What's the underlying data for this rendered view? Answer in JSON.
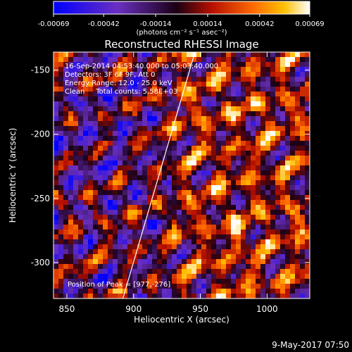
{
  "colorbar": {
    "ticks": [
      "-0.00069",
      "-0.00042",
      "-0.00014",
      "0.00014",
      "0.00042",
      "0.00069"
    ],
    "tick_values": [
      -0.00069,
      -0.00042,
      -0.00014,
      0.00014,
      0.00042,
      0.00069
    ],
    "range": [
      -0.00069,
      0.00069
    ],
    "unit_label": "(photons cm⁻² s⁻¹ asec⁻²)"
  },
  "chart_data": {
    "type": "heatmap",
    "title": "Reconstructed RHESSI Image",
    "xlabel": "Heliocentric X (arcsec)",
    "ylabel": "Heliocentric Y (arcsec)",
    "xlim": [
      840,
      1032
    ],
    "ylim": [
      -328,
      -136
    ],
    "xticks": [
      850,
      900,
      950,
      1000
    ],
    "yticks": [
      -150,
      -200,
      -250,
      -300
    ],
    "xtick_labels": [
      "850",
      "900",
      "950",
      "1000"
    ],
    "ytick_labels": [
      "-150",
      "-200",
      "-250",
      "-300"
    ],
    "grid": false,
    "limb_line": {
      "x": [
        892,
        946
      ],
      "y": [
        -328,
        -136
      ]
    },
    "colormap": [
      "#0000ff",
      "#6a2fc0",
      "#1a0014",
      "#b81000",
      "#ff6a00",
      "#ffc000",
      "#ffffff"
    ],
    "annotations": {
      "time": "16-Sep-2014 04:53:40.000 to 05:03:40.000",
      "detectors": "Detectors: 3F 6F 9F, Att 0",
      "energy": "Energy Range: 12.0 - 25.0 keV",
      "clean": "Clean     Total counts: 5.58E+03",
      "peak": "Position of Peak = [977,-276]"
    }
  },
  "footer": {
    "timestamp": "9-May-2017 07:50"
  }
}
